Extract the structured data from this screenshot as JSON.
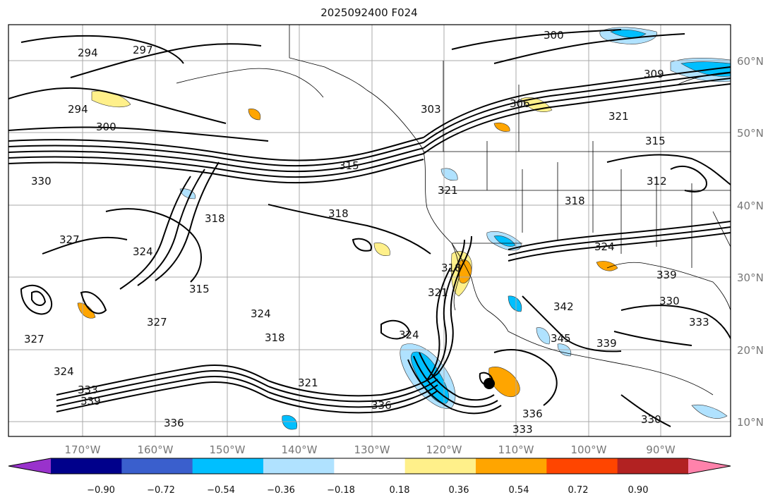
{
  "title": "2025092400 F024",
  "lat_labels": [
    "60°N",
    "50°N",
    "40°N",
    "30°N",
    "20°N",
    "10°N"
  ],
  "lon_labels": [
    "170°W",
    "160°W",
    "150°W",
    "140°W",
    "130°W",
    "120°W",
    "110°W",
    "100°W",
    "90°W"
  ],
  "colorbar": {
    "colors": [
      "#9932cc",
      "#00008b",
      "#3a5fcd",
      "#00bfff",
      "#b0e2ff",
      "#ffffff",
      "#fff08a",
      "#ffa500",
      "#ff4500",
      "#b22222",
      "#ff82ab"
    ],
    "ticks": [
      "−0.90",
      "−0.72",
      "−0.54",
      "−0.36",
      "−0.18",
      "0.18",
      "0.36",
      "0.54",
      "0.72",
      "0.90"
    ]
  },
  "contour_labels": [
    {
      "text": "294"
    },
    {
      "text": "297"
    },
    {
      "text": "294"
    },
    {
      "text": "300"
    },
    {
      "text": "300"
    },
    {
      "text": "309"
    },
    {
      "text": "303"
    },
    {
      "text": "306"
    },
    {
      "text": "321"
    },
    {
      "text": "315"
    },
    {
      "text": "312"
    },
    {
      "text": "318"
    },
    {
      "text": "315"
    },
    {
      "text": "330"
    },
    {
      "text": "327"
    },
    {
      "text": "324"
    },
    {
      "text": "318"
    },
    {
      "text": "318"
    },
    {
      "text": "321"
    },
    {
      "text": "315"
    },
    {
      "text": "324"
    },
    {
      "text": "327"
    },
    {
      "text": "318"
    },
    {
      "text": "321"
    },
    {
      "text": "324"
    },
    {
      "text": "321"
    },
    {
      "text": "318"
    },
    {
      "text": "324"
    },
    {
      "text": "342"
    },
    {
      "text": "345"
    },
    {
      "text": "339"
    },
    {
      "text": "330"
    },
    {
      "text": "333"
    },
    {
      "text": "336"
    },
    {
      "text": "336"
    },
    {
      "text": "333"
    },
    {
      "text": "339"
    },
    {
      "text": "336"
    },
    {
      "text": "327"
    },
    {
      "text": "324"
    },
    {
      "text": "333"
    },
    {
      "text": "339"
    },
    {
      "text": "330"
    }
  ]
}
